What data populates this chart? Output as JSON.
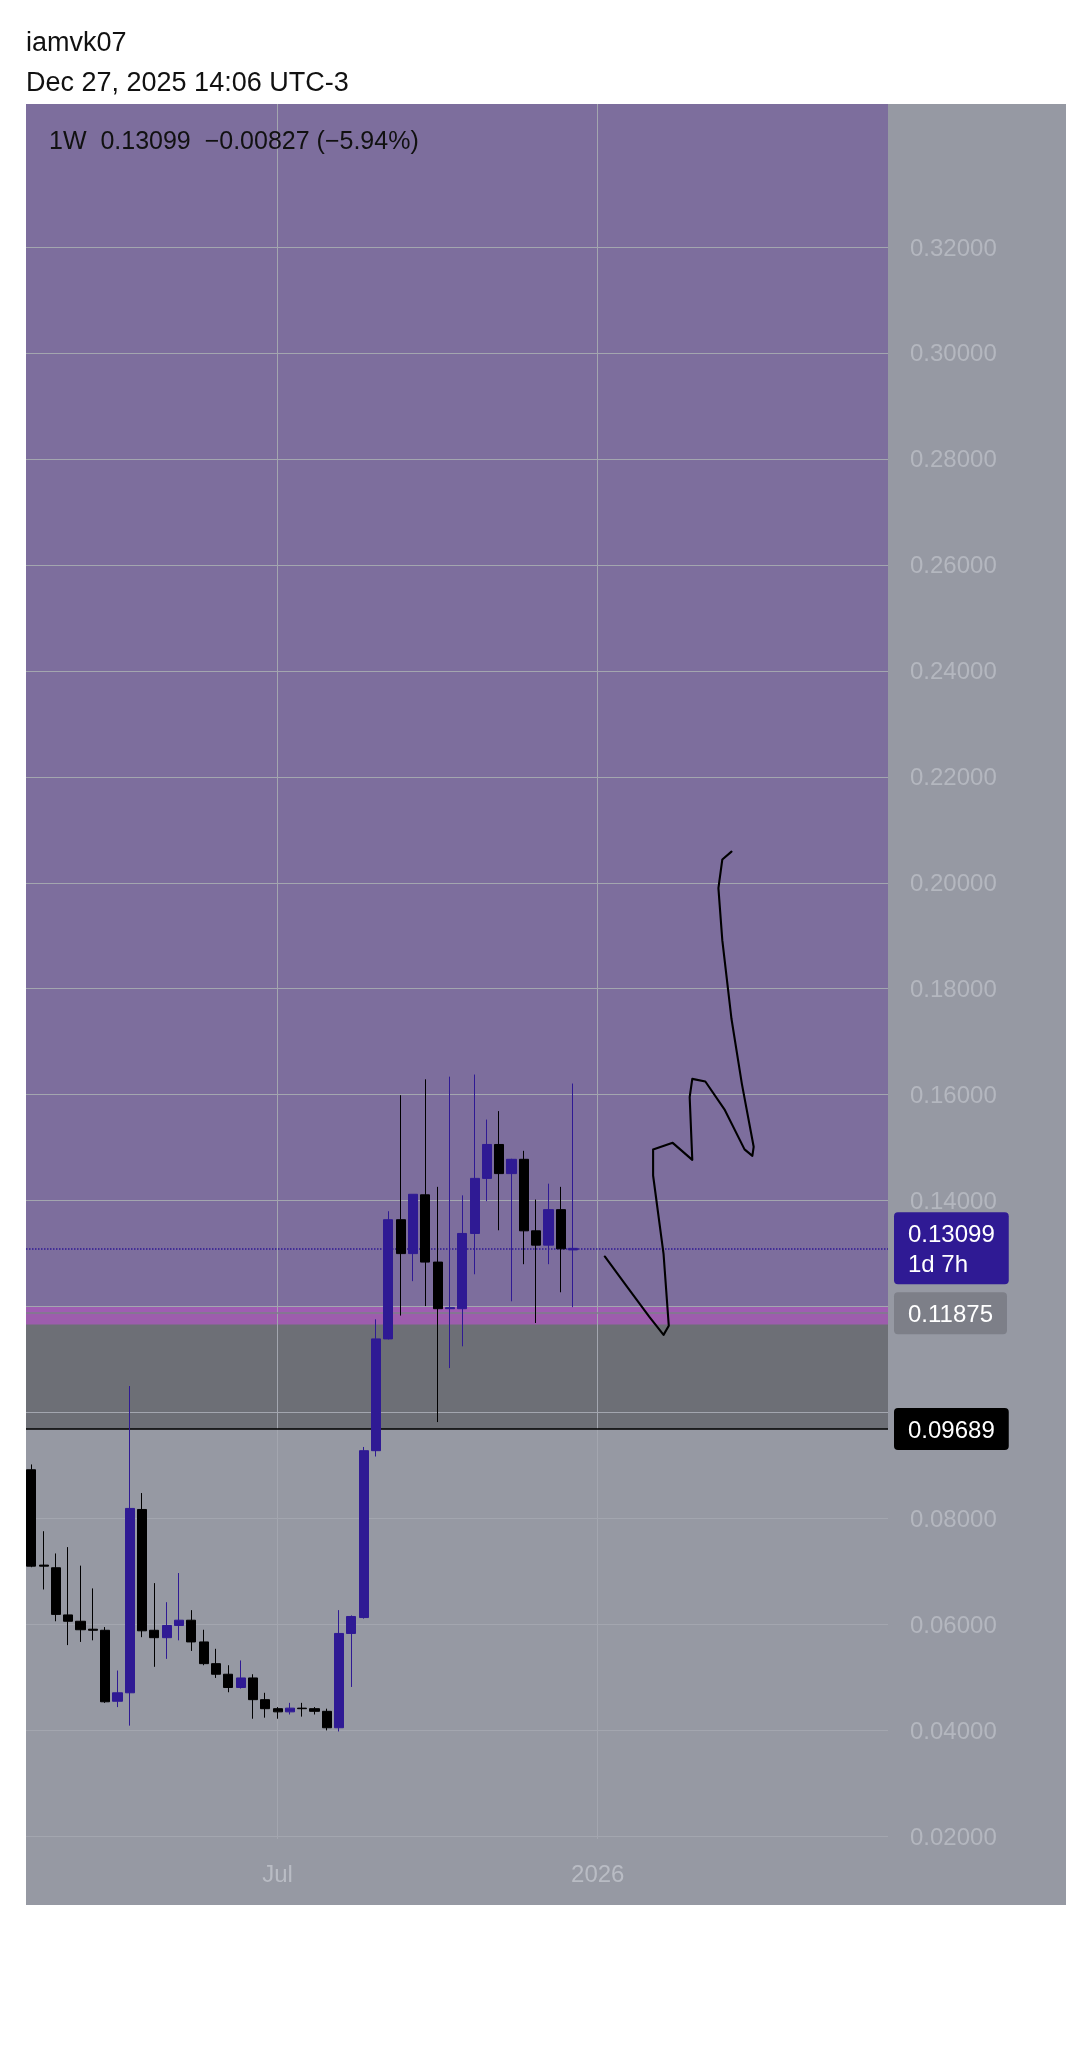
{
  "chart_data": {
    "type": "candlestick",
    "title": "1W  0.13099  −0.00827 (−5.94%)",
    "annotations": [
      "iamvk07",
      "Dec 27, 2025 14:06 UTC-3"
    ],
    "x": [
      "2025-02-17",
      "2025-02-24",
      "2025-03-03",
      "2025-03-10",
      "2025-03-17",
      "2025-03-24",
      "2025-03-31",
      "2025-04-07",
      "2025-04-14",
      "2025-04-21",
      "2025-04-28",
      "2025-05-05",
      "2025-05-12",
      "2025-05-19",
      "2025-05-26",
      "2025-06-02",
      "2025-06-09",
      "2025-06-16",
      "2025-06-23",
      "2025-06-30",
      "2025-07-07",
      "2025-07-14",
      "2025-07-21",
      "2025-07-28",
      "2025-08-04",
      "2025-08-11",
      "2025-08-18",
      "2025-08-25",
      "2025-09-01",
      "2025-09-08",
      "2025-09-15",
      "2025-09-22",
      "2025-09-29",
      "2025-10-06",
      "2025-10-13",
      "2025-10-20",
      "2025-10-27",
      "2025-11-03",
      "2025-11-10",
      "2025-11-17",
      "2025-11-24",
      "2025-12-01",
      "2025-12-08",
      "2025-12-15",
      "2025-12-22"
    ],
    "ohlc": [
      [
        0.0892,
        0.0902,
        0.0708,
        0.071
      ],
      [
        0.0712,
        0.0776,
        0.0666,
        0.071
      ],
      [
        0.0707,
        0.0734,
        0.0606,
        0.0619
      ],
      [
        0.0618,
        0.0746,
        0.0561,
        0.0606
      ],
      [
        0.0606,
        0.0711,
        0.0567,
        0.059
      ],
      [
        0.0591,
        0.0668,
        0.057,
        0.0589
      ],
      [
        0.0589,
        0.0595,
        0.0452,
        0.0454
      ],
      [
        0.0455,
        0.0513,
        0.0444,
        0.0471
      ],
      [
        0.0471,
        0.105,
        0.0409,
        0.0819
      ],
      [
        0.0817,
        0.0848,
        0.0576,
        0.0588
      ],
      [
        0.0589,
        0.0678,
        0.052,
        0.0575
      ],
      [
        0.0575,
        0.0642,
        0.0535,
        0.0598
      ],
      [
        0.0598,
        0.0697,
        0.057,
        0.0608
      ],
      [
        0.0608,
        0.0627,
        0.055,
        0.0567
      ],
      [
        0.0567,
        0.059,
        0.0523,
        0.0526
      ],
      [
        0.0526,
        0.0554,
        0.0499,
        0.0506
      ],
      [
        0.0506,
        0.0523,
        0.0472,
        0.0481
      ],
      [
        0.0481,
        0.0532,
        0.0479,
        0.0499
      ],
      [
        0.0499,
        0.0506,
        0.0422,
        0.0458
      ],
      [
        0.0458,
        0.0471,
        0.0424,
        0.0441
      ],
      [
        0.0441,
        0.0444,
        0.0422,
        0.0435
      ],
      [
        0.0435,
        0.0452,
        0.043,
        0.0442
      ],
      [
        0.0442,
        0.0452,
        0.0426,
        0.0441
      ],
      [
        0.0441,
        0.0444,
        0.043,
        0.0436
      ],
      [
        0.0436,
        0.0441,
        0.04,
        0.0405
      ],
      [
        0.0405,
        0.0627,
        0.0398,
        0.0583
      ],
      [
        0.0583,
        0.0617,
        0.0482,
        0.0615
      ],
      [
        0.0613,
        0.0935,
        0.0611,
        0.0928
      ],
      [
        0.0928,
        0.1176,
        0.0917,
        0.1139
      ],
      [
        0.1139,
        0.138,
        0.1138,
        0.1364
      ],
      [
        0.1364,
        0.1599,
        0.1183,
        0.13
      ],
      [
        0.13,
        0.1412,
        0.1248,
        0.1412
      ],
      [
        0.1411,
        0.1629,
        0.1201,
        0.1284
      ],
      [
        0.1284,
        0.1426,
        0.0982,
        0.1196
      ],
      [
        0.1196,
        0.1634,
        0.1084,
        0.1198
      ],
      [
        0.1196,
        0.141,
        0.1125,
        0.1338
      ],
      [
        0.1338,
        0.1638,
        0.1261,
        0.1442
      ],
      [
        0.1442,
        0.1553,
        0.1399,
        0.1506
      ],
      [
        0.1506,
        0.1569,
        0.1344,
        0.1451
      ],
      [
        0.1451,
        0.1479,
        0.121,
        0.1478
      ],
      [
        0.1478,
        0.1494,
        0.128,
        0.1343
      ],
      [
        0.1343,
        0.1402,
        0.1169,
        0.1316
      ],
      [
        0.1316,
        0.1432,
        0.128,
        0.1383
      ],
      [
        0.1383,
        0.1426,
        0.1227,
        0.1309
      ],
      [
        0.1307,
        0.1621,
        0.1199,
        0.13099
      ]
    ],
    "colors": [
      "#000000",
      "#000000",
      "#000000",
      "#000000",
      "#000000",
      "#000000",
      "#000000",
      "#2f1a94",
      "#2f1a94",
      "#000000",
      "#000000",
      "#2f1a94",
      "#2f1a94",
      "#000000",
      "#000000",
      "#000000",
      "#000000",
      "#2f1a94",
      "#000000",
      "#000000",
      "#000000",
      "#2f1a94",
      "#000000",
      "#000000",
      "#000000",
      "#2f1a94",
      "#2f1a94",
      "#2f1a94",
      "#2f1a94",
      "#2f1a94",
      "#000000",
      "#2f1a94",
      "#000000",
      "#000000",
      "#2f1a94",
      "#2f1a94",
      "#2f1a94",
      "#2f1a94",
      "#000000",
      "#2f1a94",
      "#000000",
      "#000000",
      "#2f1a94",
      "#000000",
      "#2f1a94"
    ],
    "xlim": [
      "2025-02-14",
      "2026-06-19"
    ],
    "xticks": [
      {
        "value": "2025-07-07",
        "label": "Jul"
      },
      {
        "value": "2026-01-05",
        "label": "2026"
      }
    ],
    "ylim": [
      0.0195,
      0.347
    ],
    "yticks": [
      {
        "value": 0.02,
        "label": "0.02000"
      },
      {
        "value": 0.04,
        "label": "0.04000"
      },
      {
        "value": 0.06,
        "label": "0.06000"
      },
      {
        "value": 0.08,
        "label": "0.08000"
      },
      {
        "value": 0.1,
        "label": null
      },
      {
        "value": 0.12,
        "label": null
      },
      {
        "value": 0.14,
        "label": "0.14000"
      },
      {
        "value": 0.16,
        "label": "0.16000"
      },
      {
        "value": 0.18,
        "label": "0.18000"
      },
      {
        "value": 0.2,
        "label": "0.20000"
      },
      {
        "value": 0.22,
        "label": "0.22000"
      },
      {
        "value": 0.24,
        "label": "0.24000"
      },
      {
        "value": 0.26,
        "label": "0.26000"
      },
      {
        "value": 0.28,
        "label": "0.28000"
      },
      {
        "value": 0.3,
        "label": "0.30000"
      },
      {
        "value": 0.32,
        "label": "0.32000"
      }
    ],
    "grid": true,
    "ref_lines": [
      {
        "axis": "y",
        "value": 0.13099,
        "label": "0.13099\n1d 7h",
        "color": "#2f1a94",
        "line_style": "dotted"
      },
      {
        "axis": "y",
        "value": 0.11875,
        "label": "0.11875",
        "color": "#7d7f88",
        "line_style": "solid"
      },
      {
        "axis": "y",
        "value": 0.09689,
        "label": "0.09689",
        "color": "#000000",
        "line_style": "solid"
      }
    ],
    "bands": [
      {
        "axis": "y",
        "from": 0.11875,
        "to": 0.347,
        "color": "#7a689c"
      },
      {
        "axis": "y",
        "from": 0.09689,
        "to": 0.11875,
        "color": "#68696f"
      },
      {
        "axis": "y",
        "from": 0.1166,
        "to": 0.1199,
        "color": "#a45bb5"
      }
    ]
  }
}
